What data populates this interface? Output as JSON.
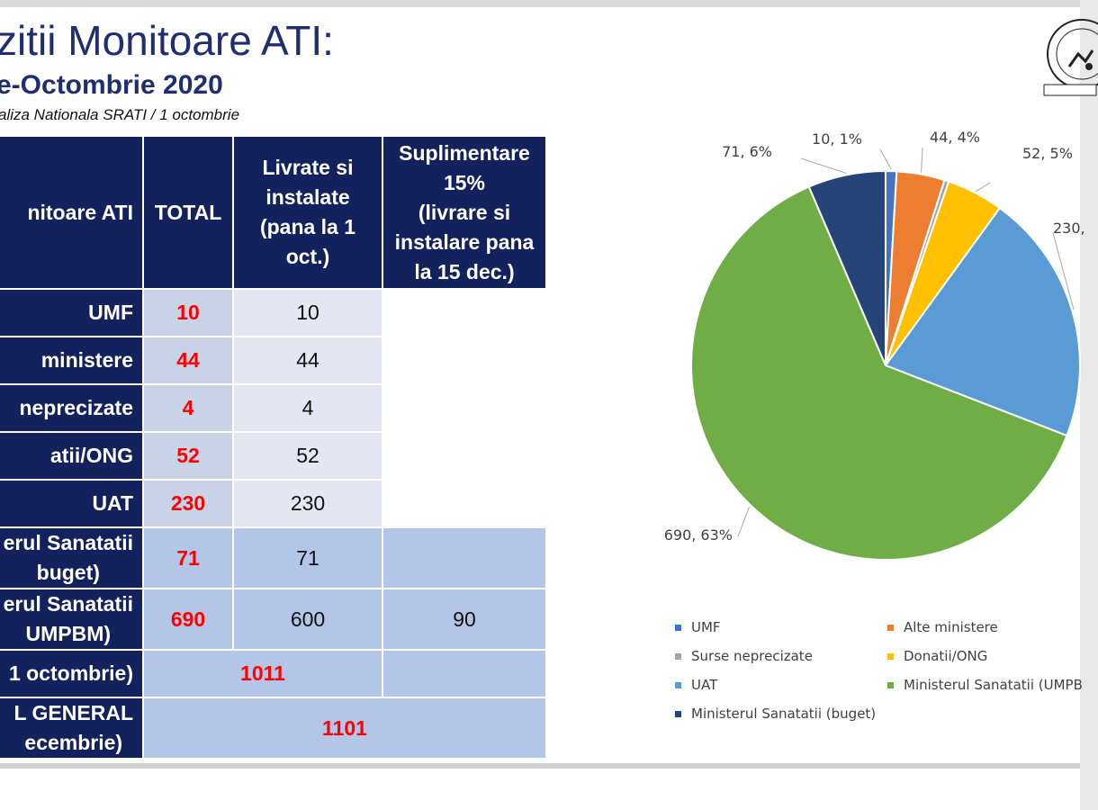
{
  "header": {
    "title": "zitii Monitoare ATI:",
    "subtitle": "e-Octombrie 2020",
    "source": "aliza Nationala SRATI / 1 octombrie"
  },
  "table": {
    "headers": {
      "category": "nitoare ATI",
      "total": "TOTAL",
      "delivered": [
        "Livrate si",
        "instalate",
        "(pana la 1",
        "oct.)"
      ],
      "extra": [
        "Suplimentare",
        "15%",
        "(livrare si",
        "instalare pana",
        "la 15 dec.)"
      ]
    },
    "rows": [
      {
        "label": [
          "UMF"
        ],
        "total": "10",
        "delivered": "10",
        "extra": ""
      },
      {
        "label": [
          "ministere"
        ],
        "total": "44",
        "delivered": "44",
        "extra": ""
      },
      {
        "label": [
          "neprecizate"
        ],
        "total": "4",
        "delivered": "4",
        "extra": ""
      },
      {
        "label": [
          "atii/ONG"
        ],
        "total": "52",
        "delivered": "52",
        "extra": ""
      },
      {
        "label": [
          "UAT"
        ],
        "total": "230",
        "delivered": "230",
        "extra": ""
      },
      {
        "label": [
          "erul Sanatatii",
          "buget)"
        ],
        "total": "71",
        "delivered": "71",
        "extra": ""
      },
      {
        "label": [
          "erul Sanatatii",
          "UMPBM)"
        ],
        "total": "690",
        "delivered": "600",
        "extra": "90"
      }
    ],
    "subtotal": {
      "label": [
        "1 octombrie)"
      ],
      "value": "1011"
    },
    "grand_total": {
      "label": [
        "L GENERAL",
        "ecembrie)"
      ],
      "value": "1101"
    }
  },
  "chart_data": {
    "type": "pie",
    "slices": [
      {
        "name": "UMF",
        "value": 10,
        "pct": "1%",
        "label": "10, 1%",
        "color": "#4472c4"
      },
      {
        "name": "Alte ministere",
        "value": 44,
        "pct": "4%",
        "label": "44, 4%",
        "color": "#ed7d31"
      },
      {
        "name": "Surse neprecizate",
        "value": 4,
        "pct": "0%",
        "label": "",
        "color": "#a5a5a5"
      },
      {
        "name": "Donatii/ONG",
        "value": 52,
        "pct": "5%",
        "label": "52, 5%",
        "color": "#ffc000"
      },
      {
        "name": "UAT",
        "value": 230,
        "pct": "21%",
        "label": "230,",
        "color": "#5b9bd5"
      },
      {
        "name": "Ministerul Sanatatii (UMPBM)",
        "value": 690,
        "pct": "63%",
        "label": "690, 63%",
        "color": "#70ad47"
      },
      {
        "name": "Ministerul Sanatatii (buget)",
        "value": 71,
        "pct": "6%",
        "label": "71, 6%",
        "color": "#264478"
      }
    ],
    "legend": [
      "UMF",
      "Alte ministere",
      "Surse neprecizate",
      "Donatii/ONG",
      "UAT",
      "Ministerul Sanatatii (UMPB",
      "Ministerul Sanatatii (buget)"
    ],
    "legend_position": "bottom"
  }
}
